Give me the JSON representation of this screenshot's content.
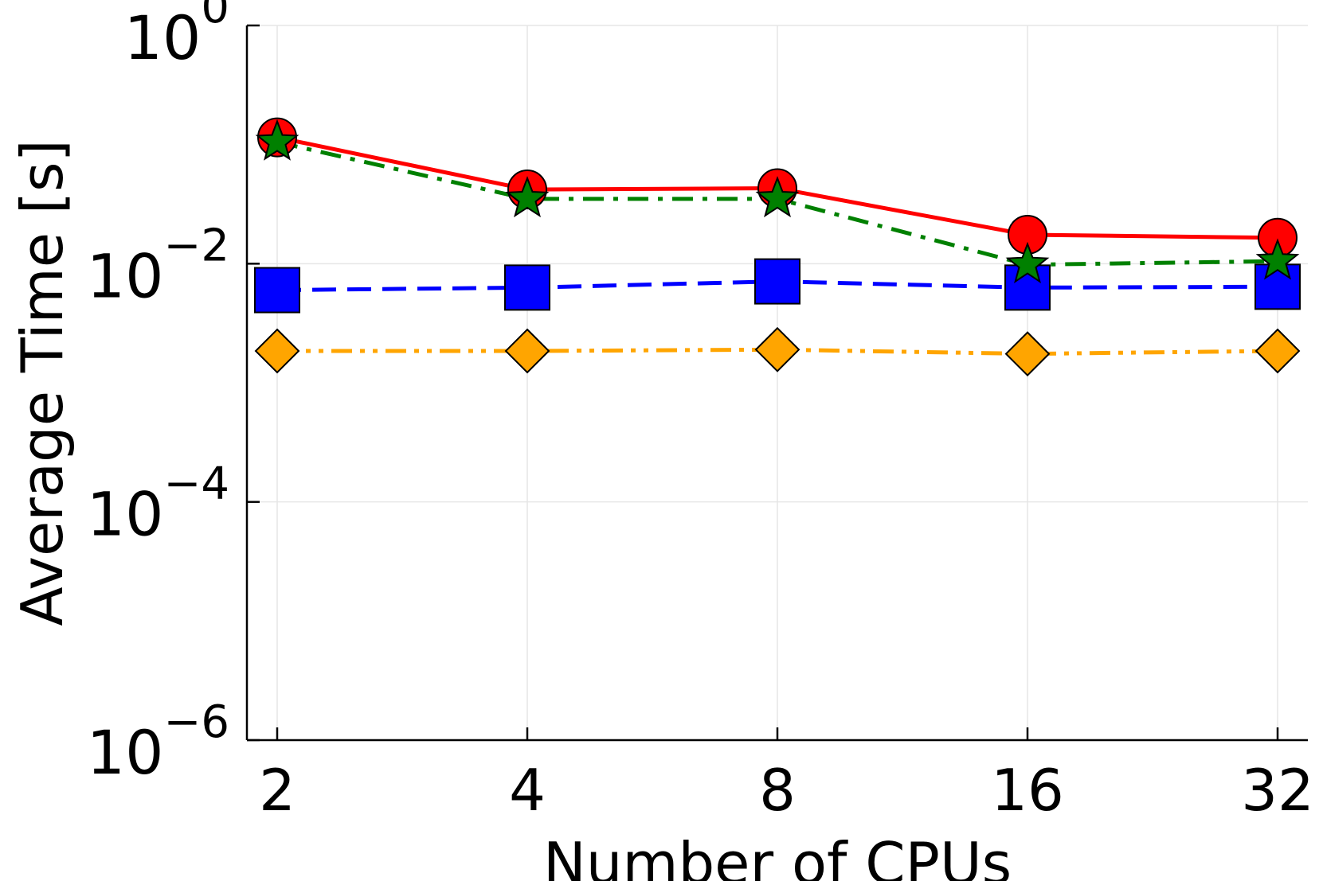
{
  "chart_data": {
    "type": "line",
    "title": "",
    "xlabel": "Number of CPUs",
    "ylabel": "Average Time [s]",
    "x_scale": "log2",
    "y_scale": "log10",
    "categories": [
      "2",
      "4",
      "8",
      "16",
      "32"
    ],
    "x": [
      2,
      4,
      8,
      16,
      32
    ],
    "ylim": [
      1e-06,
      1
    ],
    "y_ticks": [
      {
        "base": "10",
        "exp": "0",
        "value": 1
      },
      {
        "base": "10",
        "exp": "−2",
        "value": 0.01
      },
      {
        "base": "10",
        "exp": "−4",
        "value": 0.0001
      },
      {
        "base": "10",
        "exp": "−6",
        "value": 1e-06
      }
    ],
    "grid": true,
    "legend": "none",
    "series": [
      {
        "name": "series-red-circle",
        "color": "#ff0000",
        "marker": "circle",
        "dash": "solid",
        "values": [
          0.115,
          0.042,
          0.043,
          0.0175,
          0.0165
        ]
      },
      {
        "name": "series-green-star",
        "color": "#008000",
        "marker": "star",
        "dash": "dashdot",
        "values": [
          0.105,
          0.035,
          0.035,
          0.0098,
          0.0105
        ]
      },
      {
        "name": "series-blue-square",
        "color": "#0000ff",
        "marker": "square",
        "dash": "dash",
        "values": [
          0.006,
          0.0063,
          0.0071,
          0.0063,
          0.0064
        ]
      },
      {
        "name": "series-orange-diamond",
        "color": "#ffa500",
        "marker": "diamond",
        "dash": "dashdotdot",
        "values": [
          0.00185,
          0.00185,
          0.0019,
          0.00175,
          0.00185
        ]
      }
    ]
  }
}
